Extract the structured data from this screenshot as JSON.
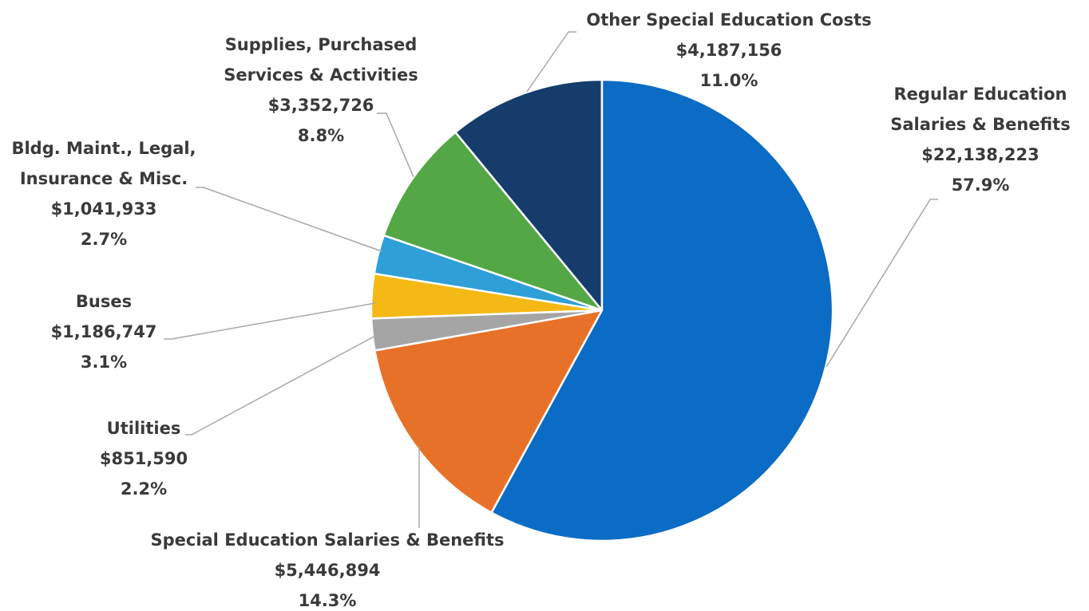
{
  "chart_data": {
    "type": "pie",
    "categories": [
      "Regular Education Salaries & Benefits",
      "Special Education Salaries & Benefits",
      "Utilities",
      "Buses",
      "Bldg. Maint., Legal, Insurance & Misc.",
      "Supplies, Purchased Services & Activities",
      "Other Special Education Costs"
    ],
    "values": [
      22138223,
      5446894,
      851590,
      1186747,
      1041933,
      3352726,
      4187156
    ],
    "value_labels": [
      "$22,138,223",
      "$5,446,894",
      "$851,590",
      "$1,186,747",
      "$1,041,933",
      "$3,352,726",
      "$4,187,156"
    ],
    "percents": [
      57.9,
      14.3,
      2.2,
      3.1,
      2.7,
      8.8,
      11.0
    ],
    "percent_labels": [
      "57.9%",
      "14.3%",
      "2.2%",
      "3.1%",
      "2.7%",
      "8.8%",
      "11.0%"
    ],
    "colors": [
      "#0a6cc4",
      "#e8712a",
      "#a5a5a5",
      "#f4b914",
      "#2f9fd8",
      "#53a845",
      "#153c6b"
    ]
  }
}
